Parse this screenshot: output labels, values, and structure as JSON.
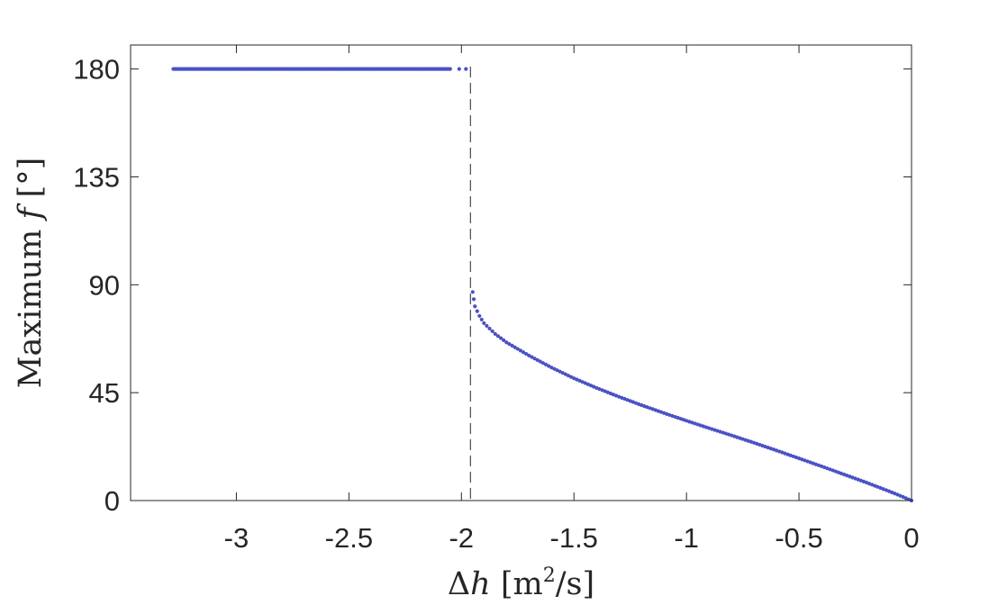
{
  "chart_data": {
    "type": "scatter",
    "xlabel": "Δh [m²/s]",
    "xlabel_parts": {
      "prefix": "Δ",
      "var": "h",
      "unit_open": " [m",
      "sup": "2",
      "unit_close": "/s]"
    },
    "ylabel": "Maximum f [°]",
    "ylabel_parts": {
      "word": "Maximum ",
      "var": "f",
      "unit": " [°]"
    },
    "xlim": [
      -3.47,
      0
    ],
    "ylim": [
      0,
      190
    ],
    "xticks": [
      -3,
      -2.5,
      -2,
      -1.5,
      -1,
      -0.5,
      0
    ],
    "xtick_labels": [
      "-3",
      "-2.5",
      "-2",
      "-1.5",
      "-1",
      "-0.5",
      "0"
    ],
    "yticks": [
      0,
      45,
      90,
      135,
      180
    ],
    "ytick_labels": [
      "0",
      "45",
      "90",
      "135",
      "180"
    ],
    "grid": false,
    "box": true,
    "marker_color": "#4a52c4",
    "vline": {
      "x": -1.96,
      "style": "dashed",
      "color": "#262626"
    },
    "series": [
      {
        "segment": "flat",
        "x_start": -3.28,
        "x_end": -2.05,
        "y": 180,
        "extra_points": [
          [
            -2.01,
            180
          ],
          [
            -1.98,
            180
          ]
        ]
      },
      {
        "segment": "curve",
        "points": [
          [
            -1.95,
            87
          ],
          [
            -1.94,
            81
          ],
          [
            -1.92,
            77
          ],
          [
            -1.9,
            74
          ],
          [
            -1.85,
            69.5
          ],
          [
            -1.8,
            66
          ],
          [
            -1.7,
            60.5
          ],
          [
            -1.6,
            55.5
          ],
          [
            -1.5,
            51
          ],
          [
            -1.4,
            47
          ],
          [
            -1.3,
            43.3
          ],
          [
            -1.2,
            39.8
          ],
          [
            -1.1,
            36.5
          ],
          [
            -1.0,
            33.3
          ],
          [
            -0.9,
            30.2
          ],
          [
            -0.8,
            27.2
          ],
          [
            -0.7,
            24.1
          ],
          [
            -0.6,
            20.9
          ],
          [
            -0.5,
            17.6
          ],
          [
            -0.4,
            14.3
          ],
          [
            -0.3,
            10.9
          ],
          [
            -0.2,
            7.5
          ],
          [
            -0.1,
            3.9
          ],
          [
            -0.05,
            2.0
          ],
          [
            0,
            0
          ]
        ]
      }
    ]
  }
}
